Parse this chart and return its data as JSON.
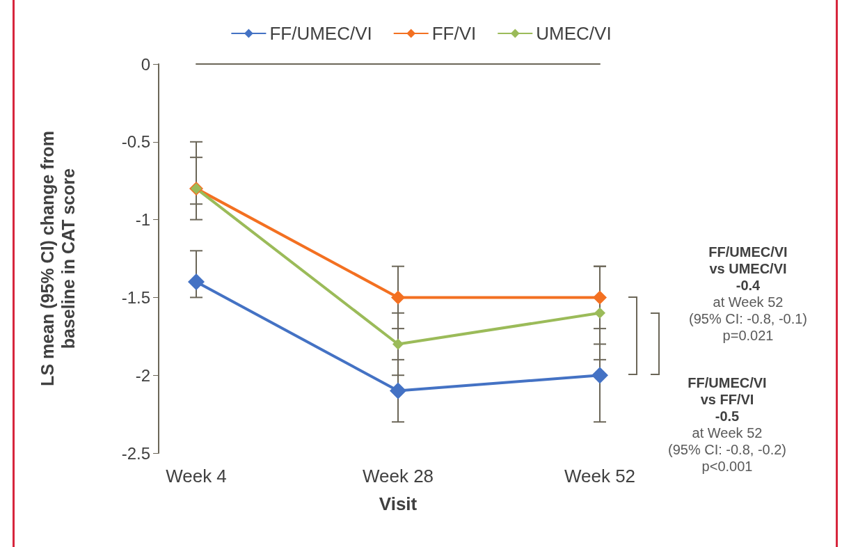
{
  "chart_data": {
    "type": "line",
    "xlabel": "Visit",
    "ylabel": "LS mean (95% CI) change from\nbaseline in CAT score",
    "categories": [
      "Week 4",
      "Week 28",
      "Week 52"
    ],
    "series": [
      {
        "name": "FF/UMEC/VI",
        "color": "#4472c4",
        "values": [
          -1.4,
          -2.1,
          -2.0
        ],
        "errors": [
          [
            -1.5,
            -1.2
          ],
          [
            -2.3,
            -1.9
          ],
          [
            -2.3,
            -1.8
          ]
        ]
      },
      {
        "name": "FF/VI",
        "color": "#f37021",
        "values": [
          -0.8,
          -1.5,
          -1.5
        ],
        "errors": [
          [
            -0.9,
            -0.6
          ],
          [
            -1.7,
            -1.3
          ],
          [
            -1.7,
            -1.3
          ]
        ]
      },
      {
        "name": "UMEC/VI",
        "color": "#9bbb59",
        "values": [
          -0.8,
          -1.8,
          -1.6
        ],
        "errors": [
          [
            -1.0,
            -0.5
          ],
          [
            -2.0,
            -1.6
          ],
          [
            -1.9,
            -1.3
          ]
        ]
      }
    ],
    "ylim": [
      -2.5,
      0
    ],
    "yticks": [
      0,
      -0.5,
      -1,
      -1.5,
      -2,
      -2.5
    ],
    "marker": "diamond",
    "line_style": "solid",
    "legend": "top",
    "grid": false,
    "annotations": [
      "FF/UMEC/VI\nvs UMEC/VI\n-0.4\nat Week 52\n(95% CI: -0.8, -0.1)\np=0.021",
      "FF/UMEC/VI\nvs FF/VI\n-0.5\nat Week 52\n(95% CI: -0.8, -0.2)\np<0.001"
    ]
  }
}
